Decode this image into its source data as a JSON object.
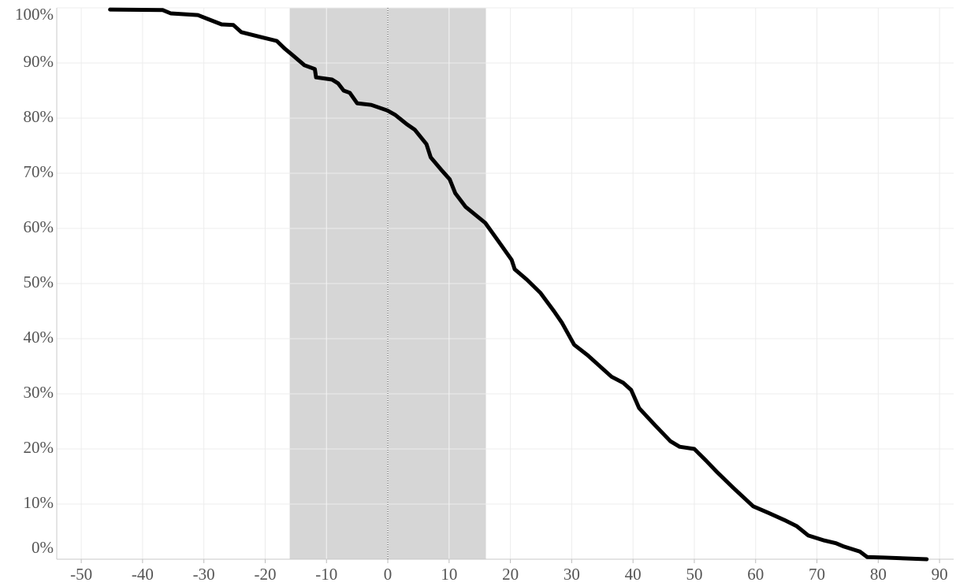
{
  "chart_data": {
    "type": "line",
    "x": [
      -45.3,
      -36.7,
      -35.4,
      -31,
      -29.4,
      -27.1,
      -25.2,
      -23.9,
      -20.7,
      -18.1,
      -16.8,
      -15.5,
      -13.6,
      -11.9,
      -11.7,
      -9.1,
      -8.1,
      -7.2,
      -6.2,
      -5,
      -2.7,
      -0.1,
      1.2,
      3.1,
      4.4,
      6.3,
      7,
      8.9,
      10.1,
      11,
      12.7,
      15.9,
      17.9,
      20.2,
      20.7,
      22.7,
      24.9,
      27.1,
      28.4,
      30.4,
      32.6,
      34.5,
      36.5,
      38.4,
      39.7,
      41,
      43.6,
      46.1,
      47.6,
      50,
      51.9,
      53.8,
      56.4,
      59.6,
      62.1,
      64.7,
      66.7,
      68.6,
      71.2,
      73.1,
      74.4,
      77,
      78.2,
      80.8,
      87.9
    ],
    "series": [
      {
        "color": "#000000",
        "values": [
          99.7,
          99.6,
          99,
          98.7,
          98,
          97,
          96.9,
          95.6,
          94.7,
          94,
          92.6,
          91.4,
          89.6,
          88.9,
          87.4,
          87,
          86.3,
          85,
          84.6,
          82.7,
          82.4,
          81.4,
          80.6,
          78.9,
          77.9,
          75.3,
          72.9,
          70.4,
          68.9,
          66.4,
          63.9,
          61,
          57.9,
          54.3,
          52.6,
          50.7,
          48.3,
          45,
          42.9,
          38.9,
          37,
          35.1,
          33.1,
          32,
          30.7,
          27.4,
          24.3,
          21.4,
          20.4,
          20,
          17.9,
          15.7,
          12.9,
          9.6,
          8.4,
          7.1,
          6,
          4.3,
          3.4,
          2.9,
          2.3,
          1.4,
          0.4,
          0.3,
          0
        ]
      }
    ],
    "xlim": [
      -54,
      92.3
    ],
    "xticks": [
      -50,
      -40,
      -30,
      -20,
      -10,
      0,
      10,
      20,
      30,
      40,
      50,
      60,
      70,
      80,
      90
    ],
    "ylim": [
      0,
      100
    ],
    "yticks": [
      {
        "value": 0,
        "label": "0%"
      },
      {
        "value": 10,
        "label": "10%"
      },
      {
        "value": 20,
        "label": "20%"
      },
      {
        "value": 30,
        "label": "30%"
      },
      {
        "value": 40,
        "label": "40%"
      },
      {
        "value": 50,
        "label": "50%"
      },
      {
        "value": 60,
        "label": "60%"
      },
      {
        "value": 70,
        "label": "70%"
      },
      {
        "value": 80,
        "label": "80%"
      },
      {
        "value": 90,
        "label": "90%"
      },
      {
        "value": 100,
        "label": "100%"
      }
    ],
    "shaded_region": [
      -16,
      16
    ],
    "reference_line": 0,
    "grid": true
  }
}
